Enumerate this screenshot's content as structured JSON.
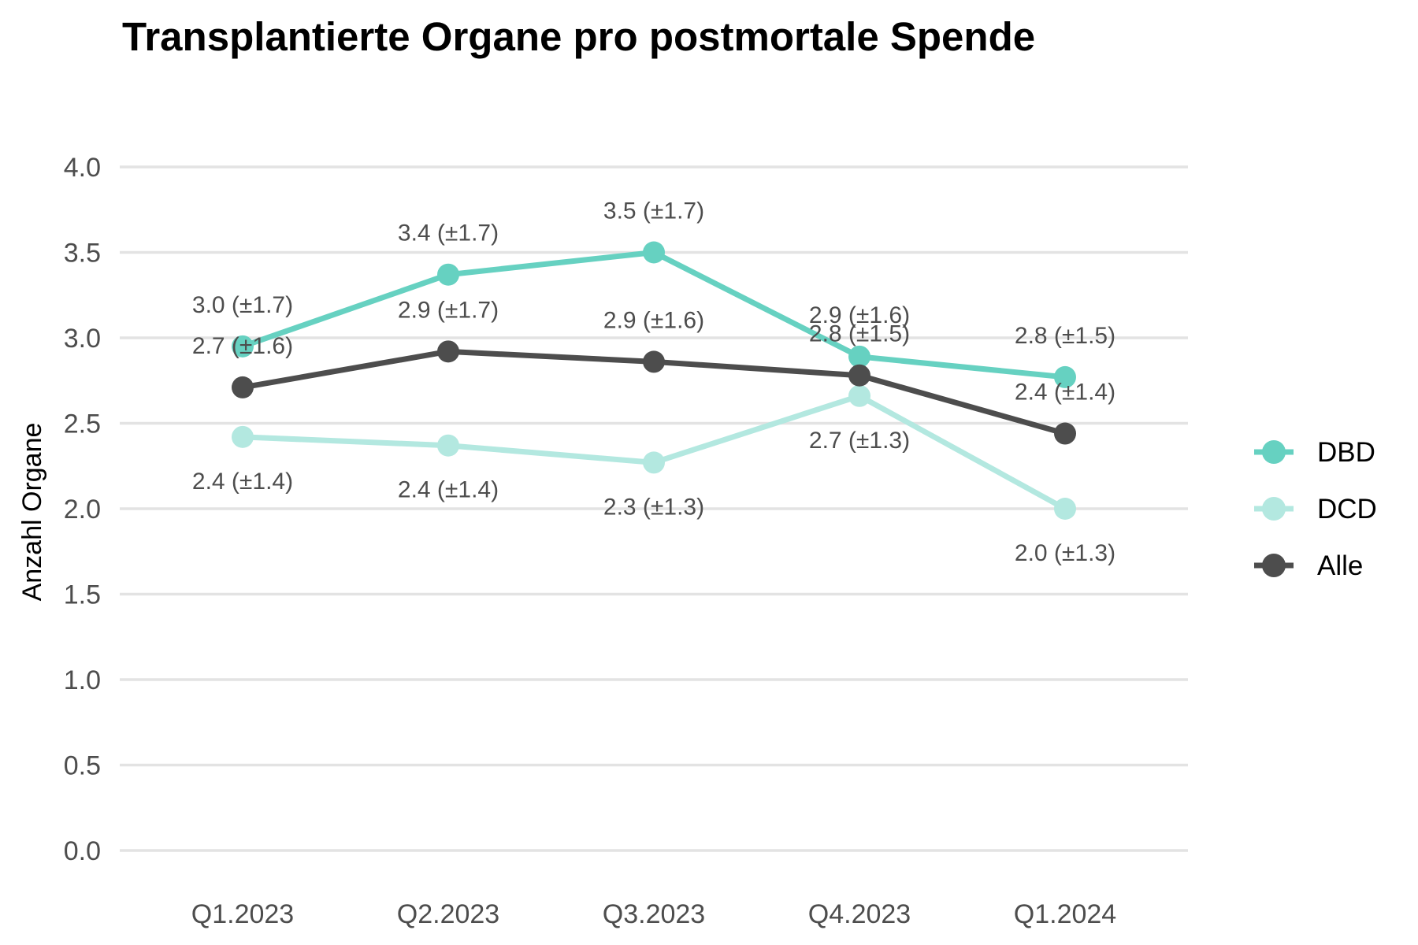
{
  "chart_data": {
    "type": "line",
    "title": "Transplantierte Organe pro postmortale Spende",
    "xlabel": "",
    "ylabel": "Anzahl Organe",
    "categories": [
      "Q1.2023",
      "Q2.2023",
      "Q3.2023",
      "Q4.2023",
      "Q1.2024"
    ],
    "ylim": [
      0,
      4
    ],
    "yticks": [
      "0.0",
      "0.5",
      "1.0",
      "1.5",
      "2.0",
      "2.5",
      "3.0",
      "3.5",
      "4.0"
    ],
    "grid": "horizontal",
    "legend_position": "right",
    "series": [
      {
        "name": "DBD",
        "color": "#66d1c1",
        "values": [
          2.95,
          3.37,
          3.5,
          2.89,
          2.77
        ],
        "labels": [
          "3.0 (±1.7)",
          "3.4 (±1.7)",
          "3.5 (±1.7)",
          "2.9 (±1.6)",
          "2.8 (±1.5)"
        ],
        "label_position": "above"
      },
      {
        "name": "DCD",
        "color": "#b3e8e0",
        "values": [
          2.42,
          2.37,
          2.27,
          2.66,
          2.0
        ],
        "labels": [
          "2.4 (±1.4)",
          "2.4 (±1.4)",
          "2.3 (±1.3)",
          "2.7 (±1.3)",
          "2.0 (±1.3)"
        ],
        "label_position": "below"
      },
      {
        "name": "Alle",
        "color": "#4d4d4d",
        "values": [
          2.71,
          2.92,
          2.86,
          2.78,
          2.44
        ],
        "labels": [
          "2.7 (±1.6)",
          "2.9 (±1.7)",
          "2.9 (±1.6)",
          "2.8 (±1.5)",
          "2.4 (±1.4)"
        ],
        "label_position": "above"
      }
    ]
  }
}
